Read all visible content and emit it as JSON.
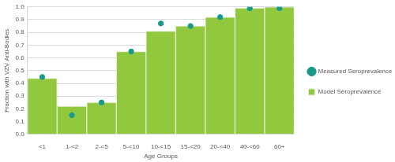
{
  "chart_data": {
    "type": "bar",
    "x_label": "Age Groups",
    "y_label": "Fraction with VZV Anti-Bodies",
    "categories": [
      "<1",
      "1-<2",
      "2-<5",
      "5-<10",
      "10-<15",
      "15-<20",
      "20-<40",
      "40-<60",
      "60+"
    ],
    "series": [
      {
        "name": "Model Seroprevalence",
        "type": "bar",
        "color": "#92c83e",
        "values": [
          0.44,
          0.22,
          0.25,
          0.65,
          0.81,
          0.85,
          0.92,
          0.99,
          1.0
        ]
      },
      {
        "name": "Measured Seroprevalence",
        "type": "scatter",
        "color": "#1b998b",
        "marker": "circle",
        "values": [
          0.45,
          0.15,
          0.25,
          0.65,
          0.87,
          0.85,
          0.92,
          0.99,
          0.99
        ]
      }
    ],
    "ylim": [
      0,
      1
    ],
    "yticks": [
      {
        "value": 0,
        "label": "0.0"
      },
      0.1,
      0.2,
      0.3,
      0.4,
      0.5,
      0.6,
      0.7,
      0.8,
      0.9,
      {
        "value": 1,
        "label": "1.0"
      }
    ],
    "grid": true,
    "legend": "right"
  }
}
